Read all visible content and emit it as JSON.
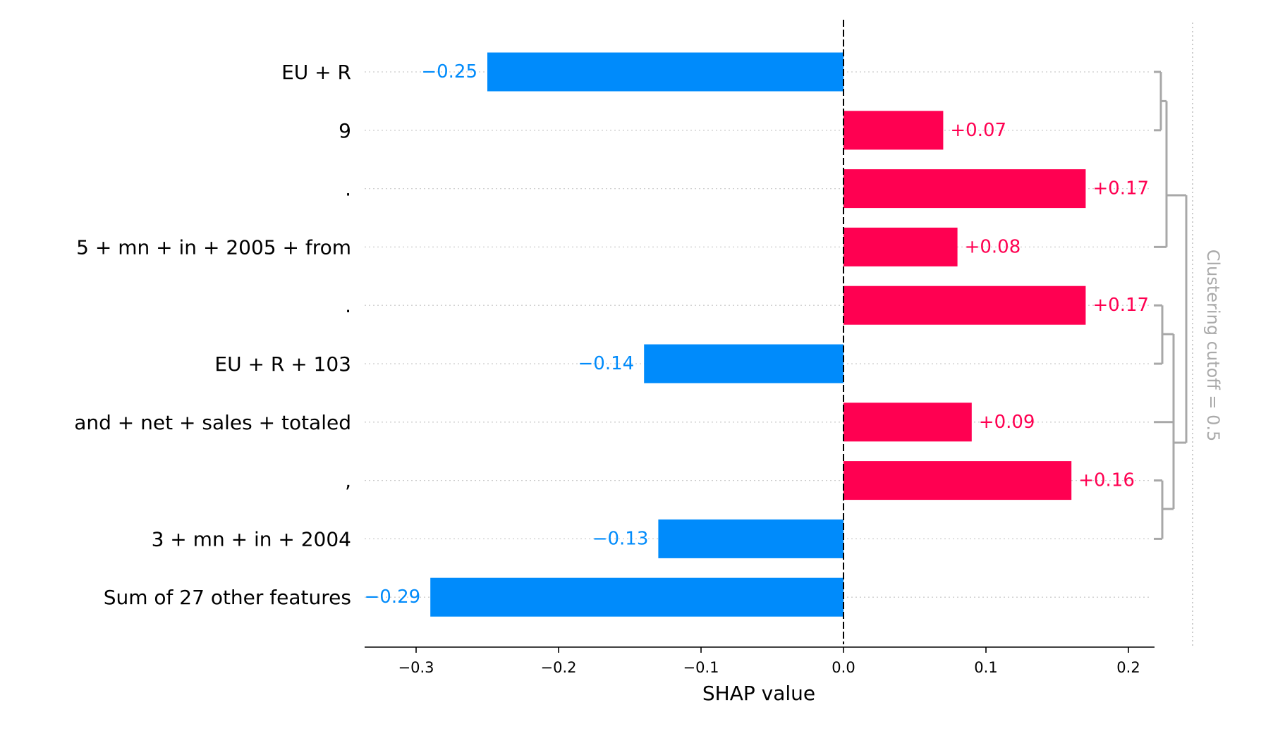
{
  "chart_data": {
    "type": "bar",
    "orientation": "horizontal",
    "xlabel": "SHAP value",
    "xlim": [
      -0.335,
      0.22
    ],
    "xticks": [
      -0.3,
      -0.2,
      -0.1,
      0.0,
      0.1,
      0.2
    ],
    "xtick_labels": [
      "−0.3",
      "−0.2",
      "−0.1",
      "0.0",
      "0.1",
      "0.2"
    ],
    "categories": [
      "EU + R",
      "9",
      ".",
      "5 + mn + in + 2005 + from",
      ".",
      "EU + R + 103",
      "and + net + sales + totaled",
      ",",
      "3 + mn + in + 2004",
      "Sum of 27 other features"
    ],
    "values": [
      -0.25,
      0.07,
      0.17,
      0.08,
      0.17,
      -0.14,
      0.09,
      0.16,
      -0.13,
      -0.29
    ],
    "value_labels": [
      "−0.25",
      "+0.07",
      "+0.17",
      "+0.08",
      "+0.17",
      "−0.14",
      "+0.09",
      "+0.16",
      "−0.13",
      "−0.29"
    ],
    "colors": {
      "positive": "#ff0051",
      "negative": "#008bfb",
      "dendrogram": "#a8a8a8",
      "grid": "#cccccc"
    },
    "clustering_label": "Clustering cutoff = 0.5",
    "grid": true
  }
}
